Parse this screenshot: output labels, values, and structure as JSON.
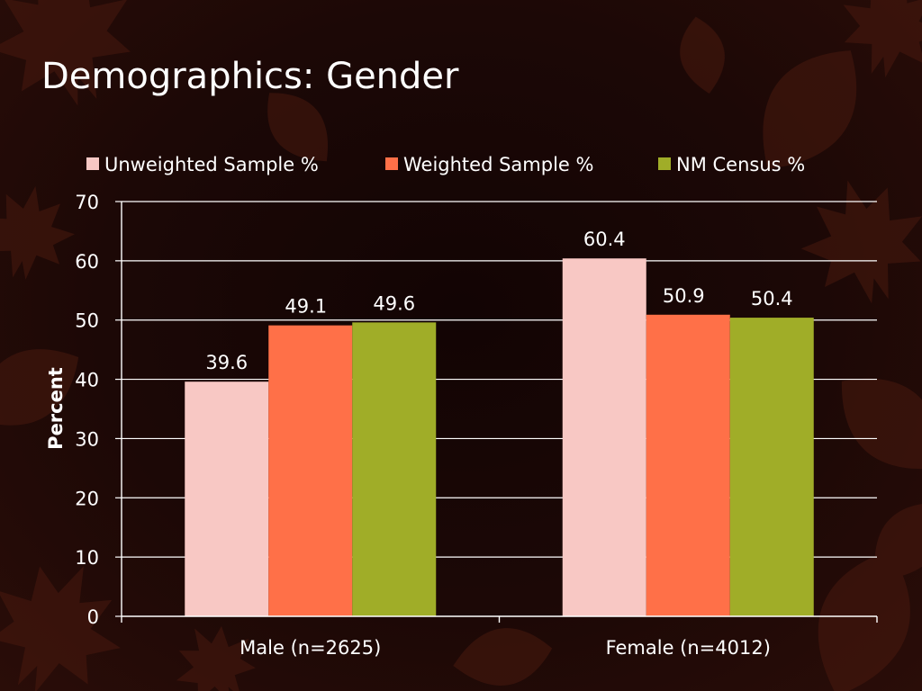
{
  "slide": {
    "title": "Demographics: Gender"
  },
  "colors": {
    "background": "#1a0805",
    "gridline": "#ffffff",
    "text": "#ffffff"
  },
  "chart_data": {
    "type": "bar",
    "title": "",
    "categories": [
      "Male (n=2625)",
      "Female (n=4012)"
    ],
    "series": [
      {
        "name": "Unweighted Sample %",
        "color": "#f8c8c4",
        "values": [
          39.6,
          60.4
        ]
      },
      {
        "name": "Weighted Sample %",
        "color": "#ff7048",
        "values": [
          49.1,
          50.9
        ]
      },
      {
        "name": "NM Census %",
        "color": "#a0ad28",
        "values": [
          49.6,
          50.4
        ]
      }
    ],
    "xlabel": "",
    "ylabel": "Percent",
    "ylim": [
      0,
      70
    ],
    "yticks": [
      0,
      10,
      20,
      30,
      40,
      50,
      60,
      70
    ],
    "grid": true,
    "legend": "top",
    "data_labels": true
  }
}
